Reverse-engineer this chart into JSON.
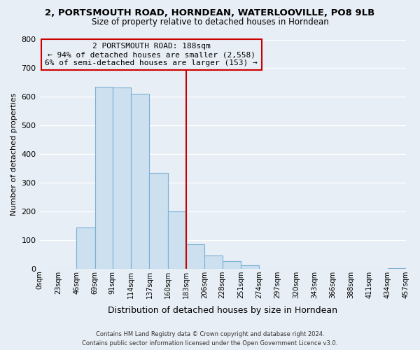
{
  "title": "2, PORTSMOUTH ROAD, HORNDEAN, WATERLOOVILLE, PO8 9LB",
  "subtitle": "Size of property relative to detached houses in Horndean",
  "xlabel": "Distribution of detached houses by size in Horndean",
  "ylabel": "Number of detached properties",
  "bin_edges": [
    0,
    23,
    46,
    69,
    91,
    114,
    137,
    160,
    183,
    206,
    228,
    251,
    274,
    297,
    320,
    343,
    366,
    388,
    411,
    434,
    457
  ],
  "bin_labels": [
    "0sqm",
    "23sqm",
    "46sqm",
    "69sqm",
    "91sqm",
    "114sqm",
    "137sqm",
    "160sqm",
    "183sqm",
    "206sqm",
    "228sqm",
    "251sqm",
    "274sqm",
    "297sqm",
    "320sqm",
    "343sqm",
    "366sqm",
    "388sqm",
    "411sqm",
    "434sqm",
    "457sqm"
  ],
  "counts": [
    0,
    0,
    143,
    635,
    632,
    610,
    334,
    201,
    84,
    46,
    27,
    12,
    0,
    0,
    0,
    0,
    0,
    0,
    0,
    2
  ],
  "bar_color": "#cce0f0",
  "bar_edge_color": "#7ab0d4",
  "vline_x": 183,
  "vline_color": "#cc0000",
  "annotation_title": "2 PORTSMOUTH ROAD: 188sqm",
  "annotation_line1": "← 94% of detached houses are smaller (2,558)",
  "annotation_line2": "6% of semi-detached houses are larger (153) →",
  "annotation_box_edge": "#cc0000",
  "ylim": [
    0,
    800
  ],
  "yticks": [
    0,
    100,
    200,
    300,
    400,
    500,
    600,
    700,
    800
  ],
  "footnote1": "Contains HM Land Registry data © Crown copyright and database right 2024.",
  "footnote2": "Contains public sector information licensed under the Open Government Licence v3.0.",
  "background_color": "#e8eef5",
  "plot_bg_color": "#e8eef5",
  "grid_color": "#ffffff",
  "title_fontsize": 9.5,
  "subtitle_fontsize": 8.5,
  "ylabel_fontsize": 8,
  "xlabel_fontsize": 9
}
